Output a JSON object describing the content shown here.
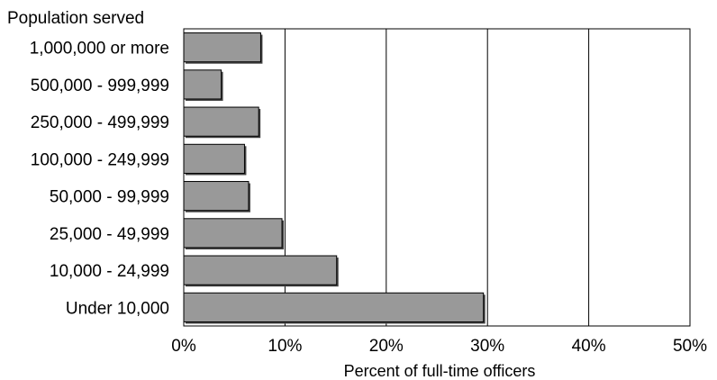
{
  "chart_data": {
    "type": "bar",
    "orientation": "horizontal",
    "title": "",
    "y_axis_title": "Population served",
    "xlabel": "Percent of full-time  officers",
    "categories": [
      "1,000,000 or more",
      "500,000 - 999,999",
      "250,000 - 499,999",
      "100,000 - 249,999",
      "50,000 - 99,999",
      "25,000 - 49,999",
      "10,000 - 24,999",
      "Under 10,000"
    ],
    "values": [
      7.6,
      3.7,
      7.4,
      6.0,
      6.4,
      9.7,
      15.1,
      29.6
    ],
    "value_unit": "percent",
    "xlim": [
      0,
      50
    ],
    "x_ticks": [
      0,
      10,
      20,
      30,
      40,
      50
    ],
    "x_tick_labels": [
      "0%",
      "10%",
      "20%",
      "30%",
      "40%",
      "50%"
    ],
    "grid": "vertical lines at each tick",
    "legend": "none",
    "colors": {
      "bar_fill": "#999999",
      "bar_stroke": "#000000",
      "bar_shadow": "#444444",
      "grid": "#000000"
    }
  }
}
